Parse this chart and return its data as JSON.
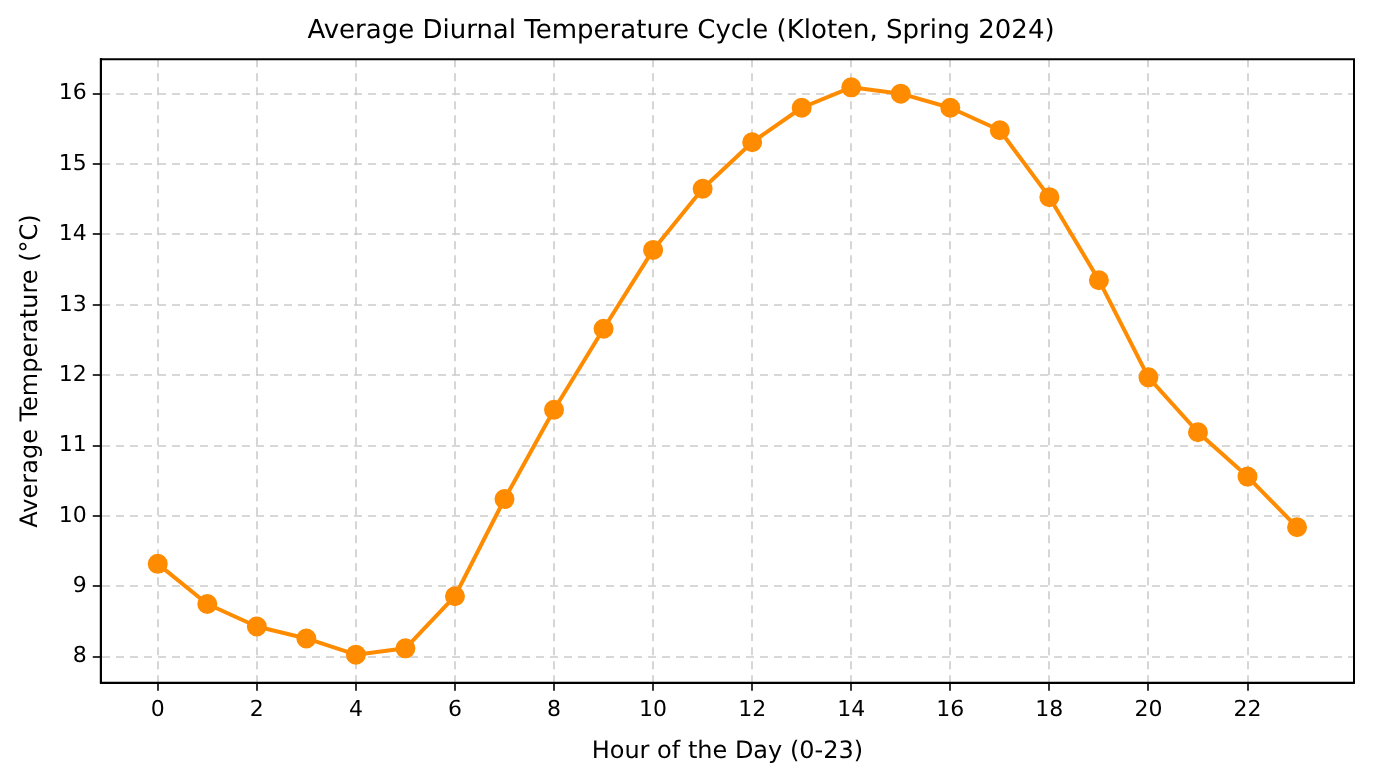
{
  "chart_data": {
    "type": "line",
    "title": "Average Diurnal Temperature Cycle (Kloten, Spring 2024)",
    "xlabel": "Hour of the Day (0-23)",
    "ylabel": "Average Temperature (°C)",
    "x": [
      0,
      1,
      2,
      3,
      4,
      5,
      6,
      7,
      8,
      9,
      10,
      11,
      12,
      13,
      14,
      15,
      16,
      17,
      18,
      19,
      20,
      21,
      22,
      23
    ],
    "series": [
      {
        "color": "#ff8c00",
        "values": [
          9.32,
          8.75,
          8.43,
          8.26,
          8.03,
          8.12,
          8.86,
          10.24,
          11.51,
          12.66,
          13.78,
          14.65,
          15.31,
          15.8,
          16.09,
          16.0,
          15.8,
          15.48,
          14.53,
          13.35,
          11.97,
          11.19,
          10.56,
          9.84
        ]
      }
    ],
    "xlim": [
      -1.15,
      24.15
    ],
    "ylim": [
      7.63,
      16.49
    ],
    "xticks": [
      0,
      2,
      4,
      6,
      8,
      10,
      12,
      14,
      16,
      18,
      20,
      22
    ],
    "yticks": [
      8,
      9,
      10,
      11,
      12,
      13,
      14,
      15,
      16
    ],
    "grid": true,
    "legend": false,
    "marker": "circle",
    "line_style": "solid"
  }
}
